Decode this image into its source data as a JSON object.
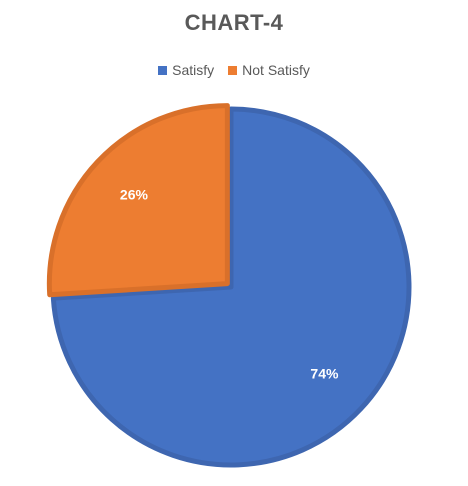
{
  "chart_data": {
    "type": "pie",
    "title": "CHART-4",
    "categories": [
      "Satisfy",
      "Not Satisfy"
    ],
    "values": [
      74,
      26
    ],
    "labels": [
      "74%",
      "26%"
    ],
    "colors": [
      "#4472C4",
      "#ED7D31"
    ],
    "legend_position": "top"
  }
}
